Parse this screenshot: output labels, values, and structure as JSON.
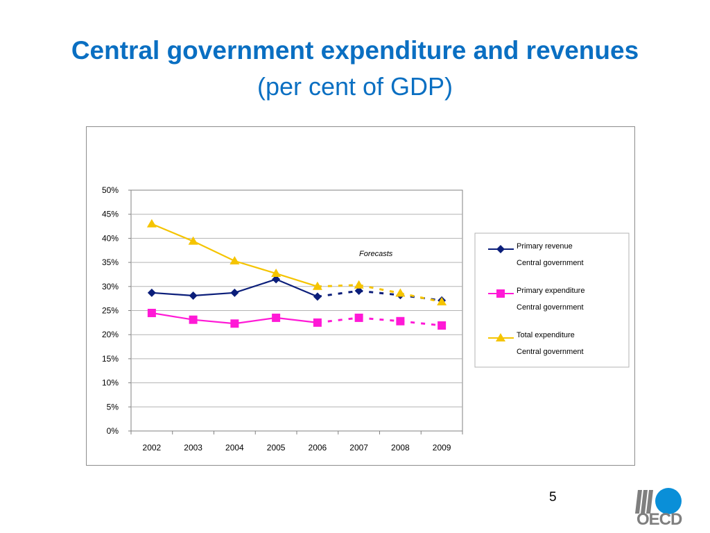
{
  "slide": {
    "title": "Central government expenditure and revenues",
    "subtitle": "(per cent of GDP)",
    "page_number": "5",
    "logo_text": "OECD"
  },
  "colors": {
    "title": "#0a6fc2",
    "primary_revenue": "#0b1e7a",
    "primary_expenditure": "#ff19d6",
    "total_expenditure": "#f5c400",
    "logo_circle": "#0a8fd8",
    "logo_grey": "#7f7f7f"
  },
  "chart_data": {
    "type": "line",
    "categories": [
      "2002",
      "2003",
      "2004",
      "2005",
      "2006",
      "2007",
      "2008",
      "2009"
    ],
    "y_tick_labels": [
      "0%",
      "5%",
      "10%",
      "15%",
      "20%",
      "25%",
      "30%",
      "35%",
      "40%",
      "45%",
      "50%"
    ],
    "ylim": [
      0,
      50
    ],
    "grid": true,
    "forecast_start_index": 4,
    "annotation": "Forecasts",
    "legend_position": "right",
    "series": [
      {
        "key": "primary_revenue",
        "name": "Primary revenue",
        "name2": "Central government",
        "marker": "diamond",
        "values": [
          28.7,
          28.1,
          28.7,
          31.5,
          27.9,
          29.1,
          28.2,
          27.1
        ]
      },
      {
        "key": "primary_expenditure",
        "name": "Primary expenditure",
        "name2": "Central government",
        "marker": "square",
        "values": [
          24.5,
          23.1,
          22.3,
          23.5,
          22.5,
          23.5,
          22.8,
          21.9
        ]
      },
      {
        "key": "total_expenditure",
        "name": "Total expenditure",
        "name2": "Central government",
        "marker": "triangle",
        "values": [
          43.0,
          39.4,
          35.3,
          32.7,
          30.0,
          30.3,
          28.6,
          26.8
        ]
      }
    ]
  }
}
